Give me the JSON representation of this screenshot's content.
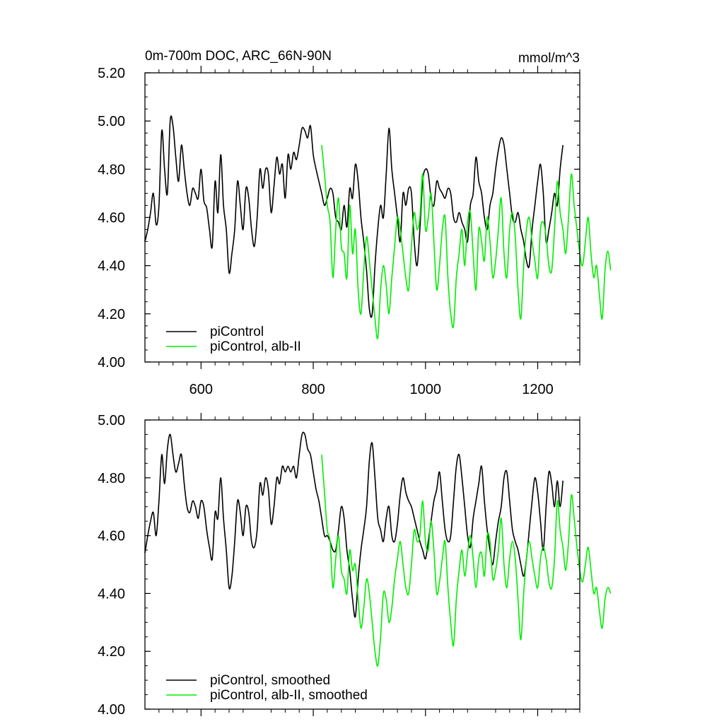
{
  "chart_data": [
    {
      "type": "line",
      "title": "0m-700m DOC, ARC_66N-90N",
      "units": "mmol/m^3",
      "xlim": [
        500,
        1275
      ],
      "ylim": [
        4.0,
        5.2
      ],
      "x_ticks": [
        600,
        800,
        1000,
        1200
      ],
      "x_tick_labels": [
        "600",
        "800",
        "1000",
        "1200"
      ],
      "y_ticks": [
        4.0,
        4.2,
        4.4,
        4.6,
        4.8,
        5.0,
        5.2
      ],
      "y_tick_labels": [
        "4.00",
        "4.20",
        "4.40",
        "4.60",
        "4.80",
        "5.00",
        "5.20"
      ],
      "legend_position": "bottom-left",
      "series": [
        {
          "name": "piControl",
          "color": "#000000",
          "x_start": 500,
          "x_step": 5,
          "values": [
            4.5,
            4.55,
            4.62,
            4.7,
            4.57,
            4.65,
            4.96,
            4.8,
            4.7,
            5.0,
            4.98,
            4.85,
            4.75,
            4.9,
            4.8,
            4.7,
            4.65,
            4.72,
            4.7,
            4.68,
            4.8,
            4.67,
            4.64,
            4.55,
            4.48,
            4.75,
            4.62,
            4.86,
            4.65,
            4.55,
            4.37,
            4.45,
            4.55,
            4.75,
            4.65,
            4.55,
            4.72,
            4.68,
            4.55,
            4.48,
            4.6,
            4.8,
            4.72,
            4.8,
            4.78,
            4.62,
            4.73,
            4.85,
            4.78,
            4.82,
            4.68,
            4.86,
            4.8,
            4.87,
            4.84,
            4.9,
            4.97,
            4.96,
            4.93,
            4.98,
            4.86,
            4.8,
            4.75,
            4.7,
            4.65,
            4.68,
            4.72,
            4.7,
            4.6,
            4.58,
            4.55,
            4.65,
            4.56,
            4.72,
            4.68,
            4.82,
            4.75,
            4.6,
            4.5,
            4.38,
            4.22,
            4.2,
            4.4,
            4.55,
            4.65,
            4.6,
            4.78,
            4.97,
            4.8,
            4.7,
            4.6,
            4.5,
            4.7,
            4.65,
            4.72,
            4.7,
            4.5,
            4.4,
            4.55,
            4.75,
            4.8,
            4.78,
            4.68,
            4.65,
            4.75,
            4.72,
            4.7,
            4.68,
            4.72,
            4.7,
            4.6,
            4.58,
            4.62,
            4.58,
            4.55,
            4.5,
            4.65,
            4.7,
            4.85,
            4.75,
            4.7,
            4.6,
            4.55,
            4.65,
            4.7,
            4.8,
            4.88,
            4.93,
            4.9,
            4.8,
            4.7,
            4.6,
            4.58,
            4.62,
            4.55,
            4.5,
            4.42,
            4.4,
            4.55,
            4.65,
            4.75,
            4.82,
            4.7,
            4.5,
            4.55,
            4.62,
            4.7,
            4.65,
            4.8,
            4.9
          ]
        },
        {
          "name": "piControl, alb-II",
          "color": "#00ee00",
          "x_start": 815,
          "x_step": 5,
          "values": [
            4.9,
            4.78,
            4.65,
            4.58,
            4.35,
            4.55,
            4.68,
            4.48,
            4.45,
            4.35,
            4.65,
            4.45,
            4.55,
            4.3,
            4.2,
            4.38,
            4.52,
            4.42,
            4.3,
            4.18,
            4.1,
            4.3,
            4.4,
            4.32,
            4.2,
            4.35,
            4.48,
            4.6,
            4.55,
            4.45,
            4.35,
            4.3,
            4.48,
            4.62,
            4.55,
            4.6,
            4.78,
            4.55,
            4.6,
            4.7,
            4.5,
            4.3,
            4.4,
            4.55,
            4.6,
            4.35,
            4.2,
            4.15,
            4.35,
            4.45,
            4.55,
            4.4,
            4.58,
            4.62,
            4.45,
            4.3,
            4.55,
            4.5,
            4.42,
            4.6,
            4.5,
            4.35,
            4.42,
            4.55,
            4.68,
            4.45,
            4.35,
            4.55,
            4.62,
            4.52,
            4.3,
            4.18,
            4.4,
            4.55,
            4.6,
            4.5,
            4.42,
            4.35,
            4.55,
            4.58,
            4.52,
            4.4,
            4.38,
            4.55,
            4.75,
            4.62,
            4.55,
            4.45,
            4.6,
            4.78,
            4.65,
            4.55,
            4.45,
            4.4,
            4.5,
            4.6,
            4.45,
            4.35,
            4.4,
            4.28,
            4.18,
            4.38,
            4.46,
            4.38
          ]
        }
      ]
    },
    {
      "type": "line",
      "xlim": [
        500,
        1275
      ],
      "ylim": [
        4.0,
        5.0
      ],
      "x_ticks": [
        600,
        800,
        1000,
        1200
      ],
      "x_tick_labels": [],
      "y_ticks": [
        4.0,
        4.2,
        4.4,
        4.6,
        4.8,
        5.0
      ],
      "y_tick_labels": [
        "4.00",
        "4.20",
        "4.40",
        "4.60",
        "4.80",
        "5.00"
      ],
      "legend_position": "bottom-left",
      "series": [
        {
          "name": "piControl, smoothed",
          "color": "#000000",
          "x_start": 500,
          "x_step": 5,
          "values": [
            4.54,
            4.6,
            4.65,
            4.68,
            4.6,
            4.72,
            4.88,
            4.78,
            4.9,
            4.95,
            4.88,
            4.82,
            4.85,
            4.88,
            4.78,
            4.7,
            4.68,
            4.72,
            4.7,
            4.66,
            4.72,
            4.7,
            4.62,
            4.56,
            4.52,
            4.68,
            4.66,
            4.8,
            4.66,
            4.55,
            4.42,
            4.46,
            4.58,
            4.72,
            4.68,
            4.6,
            4.7,
            4.68,
            4.58,
            4.56,
            4.62,
            4.78,
            4.74,
            4.8,
            4.76,
            4.64,
            4.7,
            4.8,
            4.78,
            4.84,
            4.82,
            4.84,
            4.82,
            4.84,
            4.8,
            4.88,
            4.95,
            4.95,
            4.9,
            4.88,
            4.82,
            4.76,
            4.72,
            4.66,
            4.6,
            4.6,
            4.58,
            4.55,
            4.55,
            4.62,
            4.7,
            4.66,
            4.55,
            4.48,
            4.38,
            4.32,
            4.45,
            4.55,
            4.62,
            4.7,
            4.86,
            4.92,
            4.8,
            4.66,
            4.62,
            4.58,
            4.66,
            4.7,
            4.6,
            4.58,
            4.64,
            4.74,
            4.8,
            4.75,
            4.72,
            4.7,
            4.66,
            4.62,
            4.58,
            4.55,
            4.52,
            4.58,
            4.65,
            4.72,
            4.76,
            4.82,
            4.72,
            4.62,
            4.58,
            4.6,
            4.72,
            4.84,
            4.88,
            4.8,
            4.7,
            4.6,
            4.56,
            4.66,
            4.72,
            4.78,
            4.84,
            4.72,
            4.62,
            4.55,
            4.5,
            4.58,
            4.65,
            4.7,
            4.8,
            4.82,
            4.72,
            4.62,
            4.58,
            4.55,
            4.5,
            4.46,
            4.52,
            4.62,
            4.72,
            4.8,
            4.75,
            4.65,
            4.55,
            4.7,
            4.82,
            4.78,
            4.7,
            4.79,
            4.7,
            4.79
          ]
        },
        {
          "name": "piControl, alb-II, smoothed",
          "color": "#00ee00",
          "x_start": 815,
          "x_step": 5,
          "values": [
            4.88,
            4.75,
            4.62,
            4.58,
            4.42,
            4.52,
            4.6,
            4.48,
            4.45,
            4.4,
            4.55,
            4.48,
            4.5,
            4.38,
            4.28,
            4.35,
            4.45,
            4.4,
            4.3,
            4.2,
            4.15,
            4.25,
            4.4,
            4.38,
            4.3,
            4.35,
            4.45,
            4.52,
            4.58,
            4.5,
            4.42,
            4.4,
            4.5,
            4.62,
            4.58,
            4.6,
            4.72,
            4.58,
            4.55,
            4.65,
            4.55,
            4.4,
            4.44,
            4.52,
            4.58,
            4.42,
            4.3,
            4.22,
            4.38,
            4.48,
            4.55,
            4.46,
            4.54,
            4.6,
            4.52,
            4.42,
            4.52,
            4.54,
            4.46,
            4.6,
            4.58,
            4.45,
            4.48,
            4.55,
            4.66,
            4.5,
            4.42,
            4.52,
            4.58,
            4.52,
            4.38,
            4.24,
            4.4,
            4.52,
            4.58,
            4.52,
            4.46,
            4.42,
            4.52,
            4.56,
            4.52,
            4.44,
            4.42,
            4.52,
            4.72,
            4.62,
            4.56,
            4.48,
            4.58,
            4.74,
            4.66,
            4.56,
            4.48,
            4.44,
            4.5,
            4.56,
            4.48,
            4.4,
            4.42,
            4.34,
            4.28,
            4.38,
            4.42,
            4.4
          ]
        }
      ]
    }
  ]
}
